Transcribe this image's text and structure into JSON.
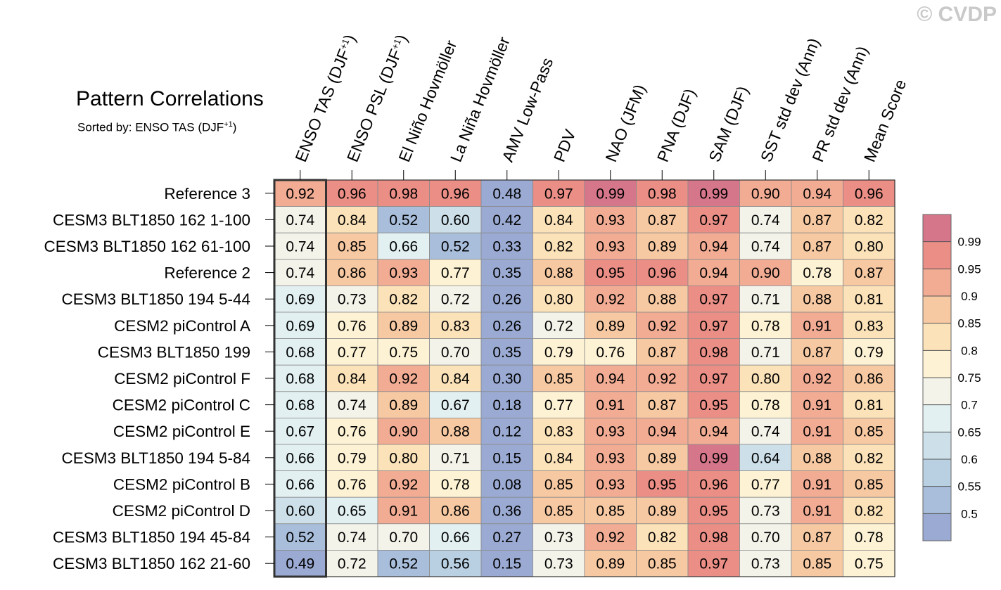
{
  "watermark": "© CVDP",
  "title": "Pattern Correlations",
  "subtitle_prefix": "Sorted by: ENSO TAS (DJF",
  "subtitle_sup": "+1",
  "subtitle_suffix": ")",
  "chart_data": {
    "type": "heatmap",
    "title": "Pattern Correlations",
    "sorted_by": "ENSO TAS (DJF+1)",
    "columns": [
      {
        "label": "ENSO TAS (DJF",
        "sup": "+1",
        "suffix": ")"
      },
      {
        "label": "ENSO PSL (DJF",
        "sup": "+1",
        "suffix": ")"
      },
      {
        "label": "El Niño Hovmöller"
      },
      {
        "label": "La Niña Hovmöller"
      },
      {
        "label": "AMV Low-Pass"
      },
      {
        "label": "PDV"
      },
      {
        "label": "NAO (JFM)"
      },
      {
        "label": "PNA (DJF)"
      },
      {
        "label": "SAM (DJF)"
      },
      {
        "label": "SST std dev (Ann)"
      },
      {
        "label": "PR std dev (Ann)"
      },
      {
        "label": "Mean Score"
      }
    ],
    "rows": [
      "Reference 3",
      "CESM3 BLT1850 162 1-100",
      "CESM3 BLT1850 162 61-100",
      "Reference 2",
      "CESM3 BLT1850 194 5-44",
      "CESM2 piControl A",
      "CESM3 BLT1850 199",
      "CESM2 piControl F",
      "CESM2 piControl C",
      "CESM2 piControl E",
      "CESM3 BLT1850 194 5-84",
      "CESM2 piControl B",
      "CESM2 piControl D",
      "CESM3 BLT1850 194 45-84",
      "CESM3 BLT1850 162 21-60"
    ],
    "values": [
      [
        "0.92",
        "0.96",
        "0.98",
        "0.96",
        "0.48",
        "0.97",
        "0.99",
        "0.98",
        "0.99",
        "0.90",
        "0.94",
        "0.96"
      ],
      [
        "0.74",
        "0.84",
        "0.52",
        "0.60",
        "0.42",
        "0.84",
        "0.93",
        "0.87",
        "0.97",
        "0.74",
        "0.87",
        "0.82"
      ],
      [
        "0.74",
        "0.85",
        "0.66",
        "0.52",
        "0.33",
        "0.82",
        "0.93",
        "0.89",
        "0.94",
        "0.74",
        "0.87",
        "0.80"
      ],
      [
        "0.74",
        "0.86",
        "0.93",
        "0.77",
        "0.35",
        "0.88",
        "0.95",
        "0.96",
        "0.94",
        "0.90",
        "0.78",
        "0.87"
      ],
      [
        "0.69",
        "0.73",
        "0.82",
        "0.72",
        "0.26",
        "0.80",
        "0.92",
        "0.88",
        "0.97",
        "0.71",
        "0.88",
        "0.81"
      ],
      [
        "0.69",
        "0.76",
        "0.89",
        "0.83",
        "0.26",
        "0.72",
        "0.89",
        "0.92",
        "0.97",
        "0.78",
        "0.91",
        "0.83"
      ],
      [
        "0.68",
        "0.77",
        "0.75",
        "0.70",
        "0.35",
        "0.79",
        "0.76",
        "0.87",
        "0.98",
        "0.71",
        "0.87",
        "0.79"
      ],
      [
        "0.68",
        "0.84",
        "0.92",
        "0.84",
        "0.30",
        "0.85",
        "0.94",
        "0.92",
        "0.97",
        "0.80",
        "0.92",
        "0.86"
      ],
      [
        "0.68",
        "0.74",
        "0.89",
        "0.67",
        "0.18",
        "0.77",
        "0.91",
        "0.87",
        "0.95",
        "0.78",
        "0.91",
        "0.81"
      ],
      [
        "0.67",
        "0.76",
        "0.90",
        "0.88",
        "0.12",
        "0.83",
        "0.93",
        "0.94",
        "0.94",
        "0.74",
        "0.91",
        "0.85"
      ],
      [
        "0.66",
        "0.79",
        "0.80",
        "0.71",
        "0.15",
        "0.84",
        "0.93",
        "0.89",
        "0.99",
        "0.64",
        "0.88",
        "0.82"
      ],
      [
        "0.66",
        "0.76",
        "0.92",
        "0.78",
        "0.08",
        "0.85",
        "0.93",
        "0.95",
        "0.96",
        "0.77",
        "0.91",
        "0.85"
      ],
      [
        "0.60",
        "0.65",
        "0.91",
        "0.86",
        "0.36",
        "0.85",
        "0.85",
        "0.89",
        "0.95",
        "0.73",
        "0.91",
        "0.82"
      ],
      [
        "0.52",
        "0.74",
        "0.70",
        "0.66",
        "0.27",
        "0.73",
        "0.92",
        "0.82",
        "0.98",
        "0.70",
        "0.87",
        "0.78"
      ],
      [
        "0.49",
        "0.72",
        "0.52",
        "0.56",
        "0.15",
        "0.73",
        "0.89",
        "0.85",
        "0.97",
        "0.73",
        "0.85",
        "0.75"
      ]
    ],
    "colorbar": {
      "levels": [
        0.5,
        0.55,
        0.6,
        0.65,
        0.7,
        0.75,
        0.8,
        0.85,
        0.9,
        0.95,
        0.99
      ],
      "labels": [
        "0.5",
        "0.55",
        "0.6",
        "0.65",
        "0.7",
        "0.75",
        "0.8",
        "0.85",
        "0.9",
        "0.95",
        "0.99"
      ],
      "colors": [
        "#9aaad2",
        "#a8bedb",
        "#b9d0e3",
        "#cde0ea",
        "#e2f0f2",
        "#f3f3ea",
        "#fdf2d4",
        "#fbe2b8",
        "#f7c9a2",
        "#f2ac94",
        "#ea8e86",
        "#d6768b"
      ]
    },
    "highlighted_column": "ENSO TAS (DJF+1)"
  }
}
